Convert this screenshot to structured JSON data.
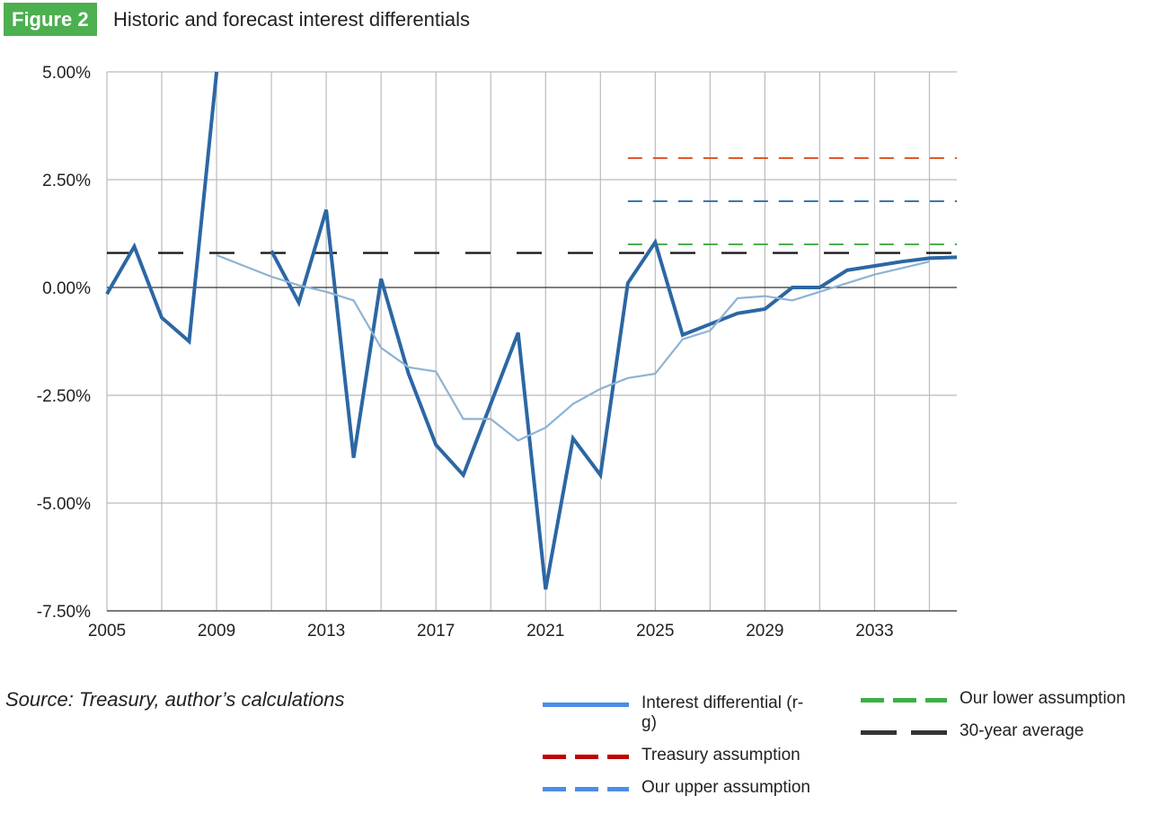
{
  "figure": {
    "label": "Figure 2",
    "title": "Historic and forecast interest differentials"
  },
  "source": "Source: Treasury, author’s calculations",
  "colors": {
    "badge": "#4caf50",
    "primary_line": "#2c67a4",
    "secondary_line": "#8db3d4",
    "treasury": "#e0572c",
    "upper": "#3a76b4",
    "lower": "#4caf50",
    "average": "#1a1a1a",
    "grid": "#bbbbbb"
  },
  "legend": [
    {
      "label": "Interest differential (r-g)",
      "style": "solid",
      "color": "#4a8ee8"
    },
    {
      "label": "Treasury assumption",
      "style": "dash",
      "color": "#c00000"
    },
    {
      "label": "Our upper assumption",
      "style": "dash",
      "color": "#4a8ee8"
    },
    {
      "label": "Our lower assumption",
      "style": "dash",
      "color": "#3cb043"
    },
    {
      "label": "30-year average",
      "style": "dash",
      "color": "#333333"
    }
  ],
  "chart_data": {
    "type": "line",
    "title": "Historic and forecast interest differentials",
    "xlim": [
      2005,
      2036
    ],
    "ylim": [
      -7.5,
      5.0
    ],
    "x_ticks": [
      {
        "value": 2005,
        "label": "2005"
      },
      {
        "value": 2009,
        "label": "2009"
      },
      {
        "value": 2013,
        "label": "2013"
      },
      {
        "value": 2017,
        "label": "2017"
      },
      {
        "value": 2021,
        "label": "2021"
      },
      {
        "value": 2025,
        "label": "2025"
      },
      {
        "value": 2029,
        "label": "2029"
      },
      {
        "value": 2033,
        "label": "2033"
      }
    ],
    "y_ticks": [
      {
        "value": 5.0,
        "label": "5.00%"
      },
      {
        "value": 2.5,
        "label": "2.50%"
      },
      {
        "value": 0.0,
        "label": "0.00%"
      },
      {
        "value": -2.5,
        "label": "-2.50%"
      },
      {
        "value": -5.0,
        "label": "-5.00%"
      },
      {
        "value": -7.5,
        "label": "-7.50%"
      }
    ],
    "grid": true,
    "legend_position": "bottom-right",
    "series": [
      {
        "name": "Interest differential (r-g)",
        "style": "solid-thick",
        "x": [
          2005,
          2006,
          2007,
          2008,
          2009
        ],
        "y": [
          -0.15,
          0.95,
          -0.7,
          -1.25,
          5.0
        ]
      },
      {
        "name": "Interest differential (r-g)",
        "style": "solid-thick",
        "x": [
          2011,
          2012,
          2013,
          2014,
          2015,
          2016,
          2017,
          2018,
          2019,
          2020,
          2021,
          2022,
          2023,
          2024,
          2025,
          2026,
          2027,
          2028,
          2029,
          2030,
          2031,
          2032,
          2033,
          2034,
          2035,
          2036
        ],
        "y": [
          0.85,
          -0.35,
          1.8,
          -3.95,
          0.2,
          -2.0,
          -3.65,
          -4.35,
          -2.7,
          -1.05,
          -7.0,
          -3.5,
          -4.35,
          0.1,
          1.05,
          -1.1,
          -0.85,
          -0.6,
          -0.5,
          0.0,
          0.0,
          0.4,
          0.5,
          0.6,
          0.68,
          0.7
        ]
      },
      {
        "name": "",
        "style": "solid-thin",
        "x": [
          2009,
          2010,
          2011,
          2012,
          2013,
          2014,
          2015,
          2016,
          2017,
          2018,
          2019,
          2020,
          2021,
          2022,
          2023,
          2024,
          2025,
          2026,
          2027,
          2028,
          2029,
          2030,
          2031,
          2032,
          2033,
          2034,
          2035
        ],
        "y": [
          0.75,
          0.5,
          0.25,
          0.05,
          -0.1,
          -0.3,
          -1.4,
          -1.85,
          -1.95,
          -3.05,
          -3.05,
          -3.55,
          -3.25,
          -2.7,
          -2.35,
          -2.1,
          -2.0,
          -1.2,
          -1.0,
          -0.25,
          -0.2,
          -0.3,
          -0.1,
          0.1,
          0.3,
          0.45,
          0.6
        ]
      },
      {
        "name": "Treasury assumption",
        "style": "dash",
        "x": [
          2024,
          2036
        ],
        "y": [
          3.0,
          3.0
        ]
      },
      {
        "name": "Our upper assumption",
        "style": "dash",
        "x": [
          2024,
          2036
        ],
        "y": [
          2.0,
          2.0
        ]
      },
      {
        "name": "Our lower assumption",
        "style": "dash",
        "x": [
          2024,
          2036
        ],
        "y": [
          1.0,
          1.0
        ]
      },
      {
        "name": "30-year average",
        "style": "dash-long",
        "x": [
          2005,
          2036
        ],
        "y": [
          0.8,
          0.8
        ]
      }
    ]
  }
}
